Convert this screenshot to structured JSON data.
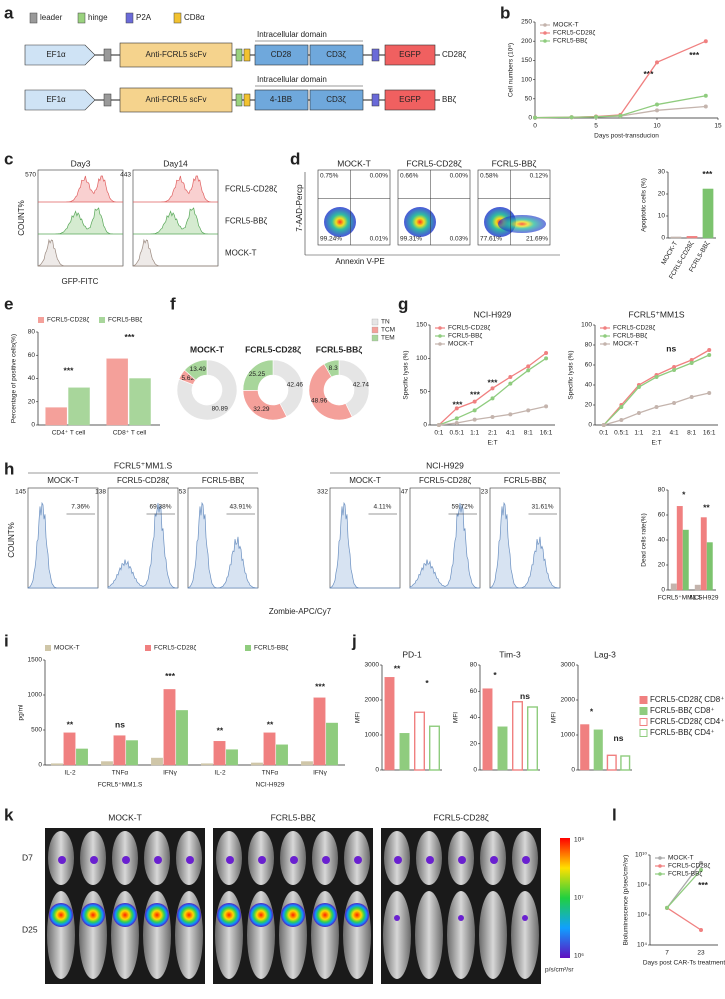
{
  "panel_labels": [
    "a",
    "b",
    "c",
    "d",
    "e",
    "f",
    "g",
    "h",
    "i",
    "j",
    "k",
    "l"
  ],
  "construct": {
    "legend": [
      "leader",
      "hinge",
      "P2A",
      "CD8α"
    ],
    "rows": [
      {
        "promoter": "EF1α",
        "scfv": "Anti-FCRL5 scFv",
        "domain_title": "Intracellular domain",
        "costim": "CD28",
        "cd3": "CD3ζ",
        "reporter": "EGFP",
        "name": "CD28ζ"
      },
      {
        "promoter": "EF1α",
        "scfv": "Anti-FCRL5 scFv",
        "domain_title": "Intracellular domain",
        "costim": "4-1BB",
        "cd3": "CD3ζ",
        "reporter": "EGFP",
        "name": "BBζ"
      }
    ]
  },
  "gfp_histograms": {
    "columns": [
      "Day3",
      "Day14"
    ],
    "rows": [
      "FCRL5-CD28ζ",
      "FCRL5-BBζ",
      "MOCK-T"
    ],
    "ylabel": "COUNT%",
    "xlabel": "GFP-FITC",
    "top_counts": [
      "570",
      "443"
    ]
  },
  "apoptosis_plots": {
    "ylabel": "7-AAD-Percp",
    "xlabel": "Annexin V-PE",
    "plots": [
      {
        "title": "MOCK-T",
        "quadrants": [
          "0.75%",
          "0.00%",
          "99.24%",
          "0.01%"
        ]
      },
      {
        "title": "FCRL5-CD28ζ",
        "quadrants": [
          "0.66%",
          "0.00%",
          "99.31%",
          "0.03%"
        ]
      },
      {
        "title": "FCRL5-BBζ",
        "quadrants": [
          "0.58%",
          "0.12%",
          "77.61%",
          "21.69%"
        ]
      }
    ]
  },
  "dead_cell_histograms": {
    "ylabel": "COUNT%",
    "xlabel": "Zombie-APC/Cy7",
    "groups": [
      {
        "title": "FCRL5⁺MM1.S",
        "plots": [
          {
            "title": "MOCK-T",
            "gate": "7.36%",
            "top": "145"
          },
          {
            "title": "FCRL5-CD28ζ",
            "gate": "69.38%",
            "top": "138"
          },
          {
            "title": "FCRL5-BBζ",
            "gate": "43.91%",
            "top": "53"
          }
        ]
      },
      {
        "title": "NCI-H929",
        "plots": [
          {
            "title": "MOCK-T",
            "gate": "4.11%",
            "top": "332"
          },
          {
            "title": "FCRL5-CD28ζ",
            "gate": "59.72%",
            "top": "47"
          },
          {
            "title": "FCRL5-BBζ",
            "gate": "31.61%",
            "top": "23"
          }
        ]
      }
    ]
  },
  "imaging": {
    "columns": [
      "MOCK-T",
      "FCRL5-BBζ",
      "FCRL5-CD28ζ"
    ],
    "rows": [
      "D7",
      "D25"
    ],
    "scale": [
      "10⁸",
      "10⁷",
      "10⁶"
    ],
    "unit": "p/s/cm²/sr"
  },
  "mfi_legend": [
    "FCRL5-CD28ζ CD8⁺",
    "FCRL5-BBζ CD8⁺",
    "FCRL5-CD28ζ CD4⁺",
    "FCRL5-BBζ CD4⁺"
  ],
  "chart_data": [
    {
      "type": "line",
      "xlabel": "Days post-transducion",
      "ylabel": "Cell numbers (10⁶)",
      "x": [
        0,
        3,
        5,
        7,
        10,
        14
      ],
      "xlim": [
        0,
        15
      ],
      "xticks": [
        0,
        5,
        10,
        15
      ],
      "ylim": [
        0,
        250
      ],
      "yticks": [
        0,
        50,
        100,
        150,
        200,
        250
      ],
      "legend": "top-left",
      "series": [
        {
          "name": "MOCK-T",
          "color": "#c4b4ad",
          "values": [
            1,
            2,
            3,
            5,
            20,
            30
          ]
        },
        {
          "name": "FCRL5-CD28ζ",
          "color": "#f08080",
          "values": [
            1,
            2,
            4,
            8,
            145,
            200
          ]
        },
        {
          "name": "FCRL5-BBζ",
          "color": "#8fcc7e",
          "values": [
            1,
            2,
            3,
            6,
            35,
            58
          ]
        }
      ],
      "annotations": [
        "***",
        "***"
      ]
    },
    {
      "type": "bar",
      "ylabel": "Apoptotic cells (%)",
      "categories": [
        "MOCK-T",
        "FCRL5-CD28ζ",
        "FCRL5-BBζ"
      ],
      "values": [
        0.5,
        0.8,
        22.3
      ],
      "colors": [
        "#c4b4ad",
        "#f08080",
        "#7cc36e"
      ],
      "ylim": [
        0,
        30
      ],
      "yticks": [
        0,
        10,
        20,
        30
      ],
      "annotations": [
        "***"
      ]
    },
    {
      "type": "bar",
      "ylabel": "Percentage of positive cells(%)",
      "categories": [
        "CD4⁺ T cell",
        "CD8⁺ T cell"
      ],
      "series": [
        {
          "name": "FCRL5-CD28ζ",
          "color": "#f4a09a",
          "values": [
            15,
            57
          ]
        },
        {
          "name": "FCRL5-BBζ",
          "color": "#a8d69b",
          "values": [
            32,
            40
          ]
        }
      ],
      "ylim": [
        0,
        80
      ],
      "yticks": [
        0,
        20,
        40,
        60,
        80
      ],
      "legend": "top",
      "annotations": [
        "***",
        "***"
      ]
    },
    {
      "type": "pie",
      "title": "MOCK-T",
      "categories": [
        "TN",
        "TCM",
        "TEM"
      ],
      "values": [
        80.89,
        5.62,
        13.49
      ],
      "colors": [
        "#e5e5e5",
        "#f4a09a",
        "#a8d69b"
      ]
    },
    {
      "type": "pie",
      "title": "FCRL5-CD28ζ",
      "categories": [
        "TN",
        "TCM",
        "TEM"
      ],
      "values": [
        42.46,
        32.29,
        25.25
      ],
      "colors": [
        "#e5e5e5",
        "#f4a09a",
        "#a8d69b"
      ]
    },
    {
      "type": "pie",
      "title": "FCRL5-BBζ",
      "categories": [
        "TN",
        "TCM",
        "TEM"
      ],
      "values": [
        42.74,
        48.96,
        8.3
      ],
      "colors": [
        "#e5e5e5",
        "#f4a09a",
        "#a8d69b"
      ],
      "legend": "right"
    },
    {
      "type": "line",
      "title": "NCI-H929",
      "xlabel": "E:T",
      "ylabel": "Specific lysis (%)",
      "categories": [
        "0:1",
        "0.5:1",
        "1:1",
        "2:1",
        "4:1",
        "8:1",
        "16:1"
      ],
      "ylim": [
        0,
        150
      ],
      "yticks": [
        0,
        50,
        100,
        150
      ],
      "legend": "top-left",
      "series": [
        {
          "name": "FCRL5-CD28ζ",
          "color": "#f08080",
          "values": [
            0,
            25,
            35,
            55,
            72,
            88,
            108
          ]
        },
        {
          "name": "FCRL5-BBζ",
          "color": "#8fcc7e",
          "values": [
            0,
            10,
            22,
            40,
            62,
            82,
            100
          ]
        },
        {
          "name": "MOCK-T",
          "color": "#c4b4ad",
          "values": [
            0,
            3,
            8,
            12,
            16,
            22,
            28
          ]
        }
      ],
      "annotations": [
        "***",
        "***",
        "***"
      ]
    },
    {
      "type": "line",
      "title": "FCRL5⁺MM1S",
      "xlabel": "E:T",
      "ylabel": "Specific lysis (%)",
      "categories": [
        "0:1",
        "0.5:1",
        "1:1",
        "2:1",
        "4:1",
        "8:1",
        "16:1"
      ],
      "ylim": [
        0,
        100
      ],
      "yticks": [
        0,
        20,
        40,
        60,
        80,
        100
      ],
      "legend": "top-left",
      "series": [
        {
          "name": "FCRL5-CD28ζ",
          "color": "#f08080",
          "values": [
            0,
            20,
            40,
            50,
            58,
            65,
            75
          ]
        },
        {
          "name": "FCRL5-BBζ",
          "color": "#8fcc7e",
          "values": [
            0,
            18,
            38,
            48,
            55,
            62,
            70
          ]
        },
        {
          "name": "MOCK-T",
          "color": "#c4b4ad",
          "values": [
            0,
            5,
            12,
            18,
            22,
            28,
            32
          ]
        }
      ],
      "annotations": [
        "ns"
      ]
    },
    {
      "type": "bar",
      "ylabel": "Dead cells rate(%)",
      "categories": [
        "FCRL5⁺MM1.S",
        "NCI-H929"
      ],
      "series": [
        {
          "color": "#c4b4ad",
          "values": [
            5,
            4
          ]
        },
        {
          "color": "#f08080",
          "values": [
            67,
            58
          ]
        },
        {
          "color": "#7cc36e",
          "values": [
            48,
            38
          ]
        }
      ],
      "ylim": [
        0,
        80
      ],
      "yticks": [
        0,
        20,
        40,
        60,
        80
      ],
      "annotations": [
        "*",
        "**"
      ]
    },
    {
      "type": "bar",
      "ylabel": "pg/ml",
      "categories": [
        "IL-2",
        "TNFα",
        "IFNγ",
        "IL-2",
        "TNFα",
        "IFNγ"
      ],
      "groups": [
        "FCRL5⁺MM1.S",
        "NCI-H929"
      ],
      "series": [
        {
          "name": "MOCK-T",
          "color": "#cfc6a8",
          "values": [
            20,
            50,
            100,
            20,
            30,
            50
          ]
        },
        {
          "name": "FCRL5-CD28ζ",
          "color": "#f08080",
          "values": [
            460,
            420,
            1080,
            340,
            460,
            960
          ]
        },
        {
          "name": "FCRL5-BBζ",
          "color": "#8fcc7e",
          "values": [
            230,
            350,
            780,
            220,
            290,
            600
          ]
        }
      ],
      "ylim": [
        0,
        1500
      ],
      "yticks": [
        0,
        500,
        1000,
        1500
      ],
      "legend": "top",
      "annotations": [
        "**",
        "ns",
        "***",
        "**",
        "**",
        "***"
      ]
    },
    {
      "type": "bar",
      "title": "PD-1",
      "ylabel": "MFI",
      "categories": [
        null,
        null,
        null,
        null
      ],
      "values": [
        2650,
        1050,
        1650,
        1250
      ],
      "colors": [
        "#f08080",
        "#8fcc7e",
        "#f08080",
        "#8fcc7e"
      ],
      "outline": [
        false,
        false,
        true,
        true
      ],
      "ylim": [
        0,
        3000
      ],
      "yticks": [
        0,
        1000,
        2000,
        3000
      ],
      "annotations": [
        "**",
        "*"
      ]
    },
    {
      "type": "bar",
      "title": "Tim-3",
      "ylabel": "MFI",
      "categories": [
        null,
        null,
        null,
        null
      ],
      "values": [
        62,
        33,
        52,
        48
      ],
      "colors": [
        "#f08080",
        "#8fcc7e",
        "#f08080",
        "#8fcc7e"
      ],
      "outline": [
        false,
        false,
        true,
        true
      ],
      "ylim": [
        0,
        80
      ],
      "yticks": [
        0,
        20,
        40,
        60,
        80
      ],
      "annotations": [
        "*",
        "ns"
      ]
    },
    {
      "type": "bar",
      "title": "Lag-3",
      "ylabel": "MFI",
      "categories": [
        null,
        null,
        null,
        null
      ],
      "values": [
        1300,
        1150,
        420,
        400
      ],
      "colors": [
        "#f08080",
        "#8fcc7e",
        "#f08080",
        "#8fcc7e"
      ],
      "outline": [
        false,
        false,
        true,
        true
      ],
      "ylim": [
        0,
        3000
      ],
      "yticks": [
        0,
        1000,
        2000,
        3000
      ],
      "annotations": [
        "*",
        "ns"
      ]
    },
    {
      "type": "line",
      "ylabel": "Bioluminescence (p/sec/cm²/sr)",
      "xlabel": "Days post CAR-Ts treatment",
      "categories": [
        "7",
        "23"
      ],
      "log_y": true,
      "ylim": [
        10000,
        10000000000
      ],
      "yticks": [
        {
          "value": 10000,
          "label": "10⁴"
        },
        {
          "value": 1000000,
          "label": "10⁶"
        },
        {
          "value": 100000000,
          "label": "10⁸"
        },
        {
          "value": 10000000000,
          "label": "10¹⁰"
        }
      ],
      "legend": "top-left",
      "series": [
        {
          "name": "MOCK-T",
          "color": "#aaaaaa",
          "values": [
            3000000,
            3000000000
          ]
        },
        {
          "name": "FCRL5-CD28ζ",
          "color": "#f08080",
          "values": [
            3000000,
            100000
          ]
        },
        {
          "name": "FCRL5-BBζ",
          "color": "#8fcc7e",
          "values": [
            3000000,
            1000000000
          ]
        }
      ],
      "annotations": [
        "***"
      ]
    }
  ]
}
